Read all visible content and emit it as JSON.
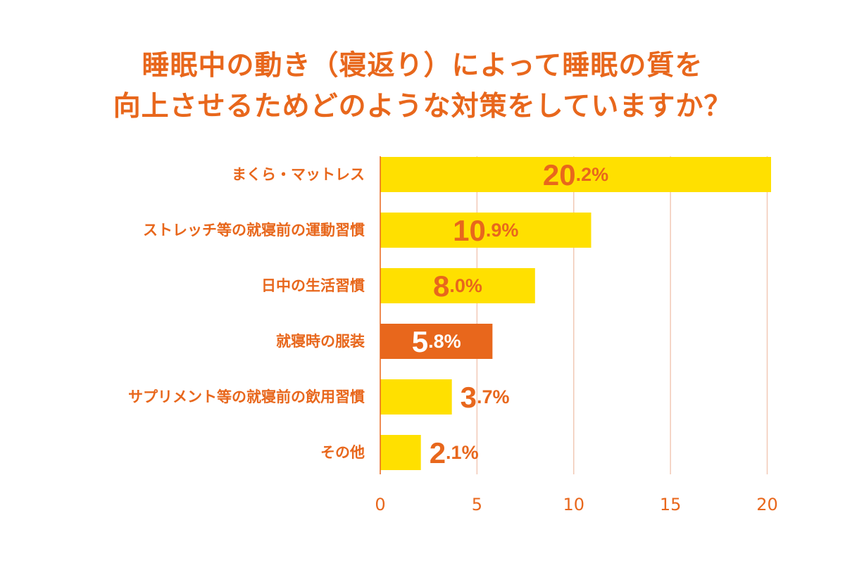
{
  "chart_data": {
    "type": "bar",
    "orientation": "horizontal",
    "title_lines": [
      "睡眠中の動き（寝返り）によって睡眠の質を",
      "向上させるためどのような対策をしていますか？"
    ],
    "categories": [
      "まくら・マットレス",
      "ストレッチ等の就寝前の運動習慣",
      "日中の生活習慣",
      "就寝時の服装",
      "サプリメント等の就寝前の飲用習慣",
      "その他"
    ],
    "values": [
      20.2,
      10.9,
      8.0,
      5.8,
      3.7,
      2.1
    ],
    "value_unit": "%",
    "highlight_index": 3,
    "xlim": [
      0,
      20.6
    ],
    "xticks": [
      0,
      5,
      10,
      15,
      20
    ],
    "grid": true,
    "colors": {
      "bar": "#FFE000",
      "highlight_bar": "#E8671C",
      "text": "#E8671C",
      "grid": "#F2C9B5",
      "axis": "#E8671C"
    }
  }
}
